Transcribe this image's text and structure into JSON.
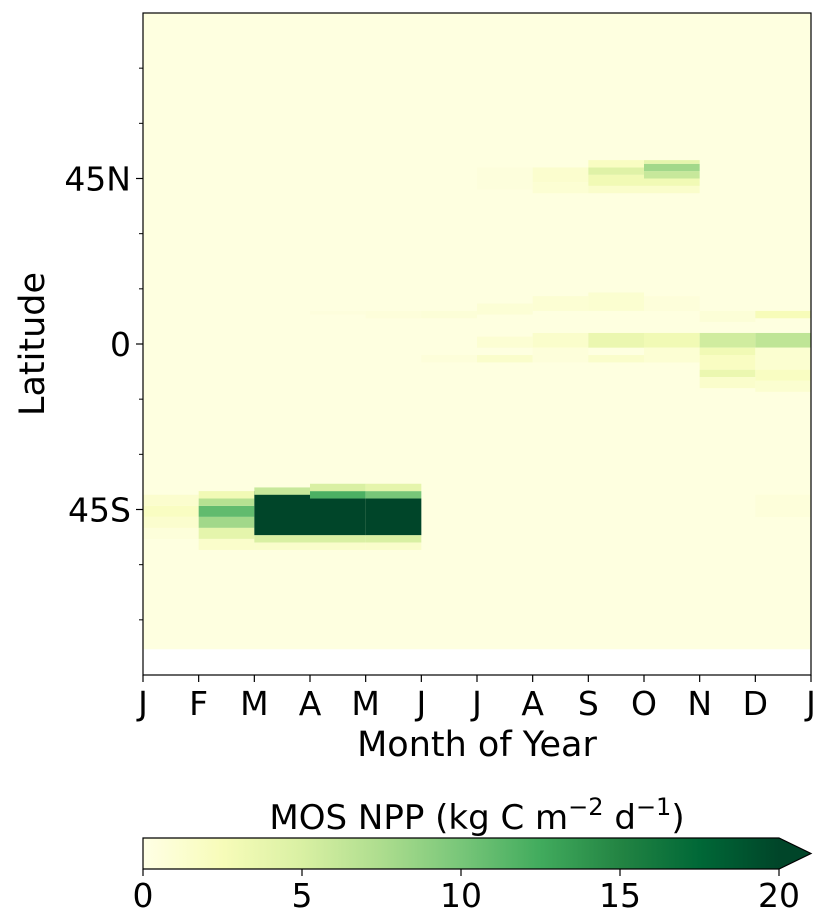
{
  "chart_data": {
    "type": "heatmap",
    "xlabel": "Month of Year",
    "ylabel": "Latitude",
    "x_tick_labels": [
      "J",
      "F",
      "M",
      "A",
      "M",
      "J",
      "J",
      "A",
      "S",
      "O",
      "N",
      "D",
      "J"
    ],
    "y_ticks": [
      {
        "lat": 45,
        "label": "45N"
      },
      {
        "lat": 0,
        "label": "0"
      },
      {
        "lat": -45,
        "label": "45S"
      }
    ],
    "xlim": [
      0,
      12
    ],
    "ylim": [
      -90,
      90
    ],
    "data_lat_range": [
      -83,
      90
    ],
    "colorbar": {
      "label": "MOS NPP (kg C m⁻² d⁻¹)",
      "label_main": "MOS NPP (kg C m",
      "label_exp1": "−2",
      "label_mid": " d",
      "label_exp2": "−1",
      "label_end": ")",
      "min": 0,
      "max": 20,
      "extend": "max",
      "ticks": [
        0,
        5,
        10,
        15,
        20
      ],
      "colormap": "YlGn",
      "colors": [
        "#ffffe5",
        "#f7fcb9",
        "#d9f0a3",
        "#addd8e",
        "#78c679",
        "#41ab5d",
        "#238443",
        "#006837",
        "#004529"
      ]
    },
    "background_value": 0.3,
    "cells": [
      {
        "month": 0,
        "lat_min": -47,
        "lat_max": -44,
        "value": 2.0
      },
      {
        "month": 0,
        "lat_min": -44,
        "lat_max": -41,
        "value": 1.3
      },
      {
        "month": 0,
        "lat_min": -50,
        "lat_max": -47,
        "value": 1.3
      },
      {
        "month": 0,
        "lat_min": -53,
        "lat_max": -50,
        "value": 0.6
      },
      {
        "month": 1,
        "lat_min": -50,
        "lat_max": -47,
        "value": 8.0
      },
      {
        "month": 1,
        "lat_min": -47,
        "lat_max": -44,
        "value": 11.0
      },
      {
        "month": 1,
        "lat_min": -44,
        "lat_max": -42,
        "value": 7.0
      },
      {
        "month": 1,
        "lat_min": -42,
        "lat_max": -40,
        "value": 3.0
      },
      {
        "month": 1,
        "lat_min": -53,
        "lat_max": -50,
        "value": 4.0
      },
      {
        "month": 1,
        "lat_min": -56,
        "lat_max": -53,
        "value": 1.5
      },
      {
        "month": 2,
        "lat_min": -52,
        "lat_max": -40,
        "value": 20.0
      },
      {
        "month": 2,
        "lat_min": -41,
        "lat_max": -39,
        "value": 6.0
      },
      {
        "month": 2,
        "lat_min": -54,
        "lat_max": -52,
        "value": 5.0
      },
      {
        "month": 2,
        "lat_min": -56,
        "lat_max": -54,
        "value": 1.5
      },
      {
        "month": 3,
        "lat_min": -52,
        "lat_max": -42,
        "value": 20.0
      },
      {
        "month": 3,
        "lat_min": -42,
        "lat_max": -40,
        "value": 12.0
      },
      {
        "month": 3,
        "lat_min": -40,
        "lat_max": -38,
        "value": 5.0
      },
      {
        "month": 3,
        "lat_min": -54,
        "lat_max": -52,
        "value": 5.0
      },
      {
        "month": 3,
        "lat_min": -56,
        "lat_max": -54,
        "value": 1.5
      },
      {
        "month": 4,
        "lat_min": -52,
        "lat_max": -42,
        "value": 20.0
      },
      {
        "month": 4,
        "lat_min": -42,
        "lat_max": -40,
        "value": 10.0
      },
      {
        "month": 4,
        "lat_min": -40,
        "lat_max": -38,
        "value": 4.0
      },
      {
        "month": 4,
        "lat_min": -54,
        "lat_max": -52,
        "value": 5.0
      },
      {
        "month": 4,
        "lat_min": -56,
        "lat_max": -54,
        "value": 1.5
      },
      {
        "month": 11,
        "lat_min": -47,
        "lat_max": -41,
        "value": 0.6
      },
      {
        "month": 6,
        "lat_min": 42,
        "lat_max": 48,
        "value": 0.5
      },
      {
        "month": 7,
        "lat_min": 41,
        "lat_max": 44,
        "value": 1.0
      },
      {
        "month": 7,
        "lat_min": 44,
        "lat_max": 48,
        "value": 1.3
      },
      {
        "month": 8,
        "lat_min": 41,
        "lat_max": 43,
        "value": 1.5
      },
      {
        "month": 8,
        "lat_min": 43,
        "lat_max": 46,
        "value": 3.0
      },
      {
        "month": 8,
        "lat_min": 46,
        "lat_max": 48,
        "value": 4.5
      },
      {
        "month": 8,
        "lat_min": 48,
        "lat_max": 50,
        "value": 2.0
      },
      {
        "month": 9,
        "lat_min": 41,
        "lat_max": 43,
        "value": 1.5
      },
      {
        "month": 9,
        "lat_min": 43,
        "lat_max": 45,
        "value": 3.0
      },
      {
        "month": 9,
        "lat_min": 45,
        "lat_max": 47,
        "value": 6.0
      },
      {
        "month": 9,
        "lat_min": 47,
        "lat_max": 49,
        "value": 8.0
      },
      {
        "month": 9,
        "lat_min": 49,
        "lat_max": 50,
        "value": 4.0
      },
      {
        "month": 3,
        "lat_min": 8,
        "lat_max": 9,
        "value": 0.5
      },
      {
        "month": 4,
        "lat_min": 7,
        "lat_max": 9,
        "value": 0.6
      },
      {
        "month": 5,
        "lat_min": 7,
        "lat_max": 9,
        "value": 0.8
      },
      {
        "month": 5,
        "lat_min": -5,
        "lat_max": -3,
        "value": 0.6
      },
      {
        "month": 6,
        "lat_min": 8,
        "lat_max": 11,
        "value": 0.9
      },
      {
        "month": 6,
        "lat_min": -1,
        "lat_max": 2,
        "value": 1.0
      },
      {
        "month": 6,
        "lat_min": -5,
        "lat_max": -3,
        "value": 1.5
      },
      {
        "month": 7,
        "lat_min": 9,
        "lat_max": 13,
        "value": 1.0
      },
      {
        "month": 7,
        "lat_min": -1,
        "lat_max": 3,
        "value": 1.5
      },
      {
        "month": 7,
        "lat_min": -5,
        "lat_max": -1,
        "value": 0.6
      },
      {
        "month": 8,
        "lat_min": 9,
        "lat_max": 14,
        "value": 1.2
      },
      {
        "month": 8,
        "lat_min": -1,
        "lat_max": 3,
        "value": 3.5
      },
      {
        "month": 8,
        "lat_min": -5,
        "lat_max": -3,
        "value": 1.5
      },
      {
        "month": 9,
        "lat_min": 9,
        "lat_max": 13,
        "value": 0.6
      },
      {
        "month": 9,
        "lat_min": -1,
        "lat_max": 3,
        "value": 3.0
      },
      {
        "month": 9,
        "lat_min": -5,
        "lat_max": -1,
        "value": 1.0
      },
      {
        "month": 10,
        "lat_min": 6,
        "lat_max": 9,
        "value": 0.8
      },
      {
        "month": 10,
        "lat_min": -1,
        "lat_max": 3,
        "value": 5.5
      },
      {
        "month": 10,
        "lat_min": -3,
        "lat_max": -1,
        "value": 3.0
      },
      {
        "month": 10,
        "lat_min": -7,
        "lat_max": -3,
        "value": 2.0
      },
      {
        "month": 10,
        "lat_min": -9,
        "lat_max": -7,
        "value": 3.5
      },
      {
        "month": 10,
        "lat_min": -12,
        "lat_max": -9,
        "value": 1.5
      },
      {
        "month": 11,
        "lat_min": 7,
        "lat_max": 9,
        "value": 2.5
      },
      {
        "month": 11,
        "lat_min": -1,
        "lat_max": 3,
        "value": 6.5
      },
      {
        "month": 11,
        "lat_min": -7,
        "lat_max": -1,
        "value": 1.2
      },
      {
        "month": 11,
        "lat_min": -10,
        "lat_max": -7,
        "value": 2.0
      },
      {
        "month": 11,
        "lat_min": -13,
        "lat_max": -10,
        "value": 1.2
      }
    ]
  }
}
